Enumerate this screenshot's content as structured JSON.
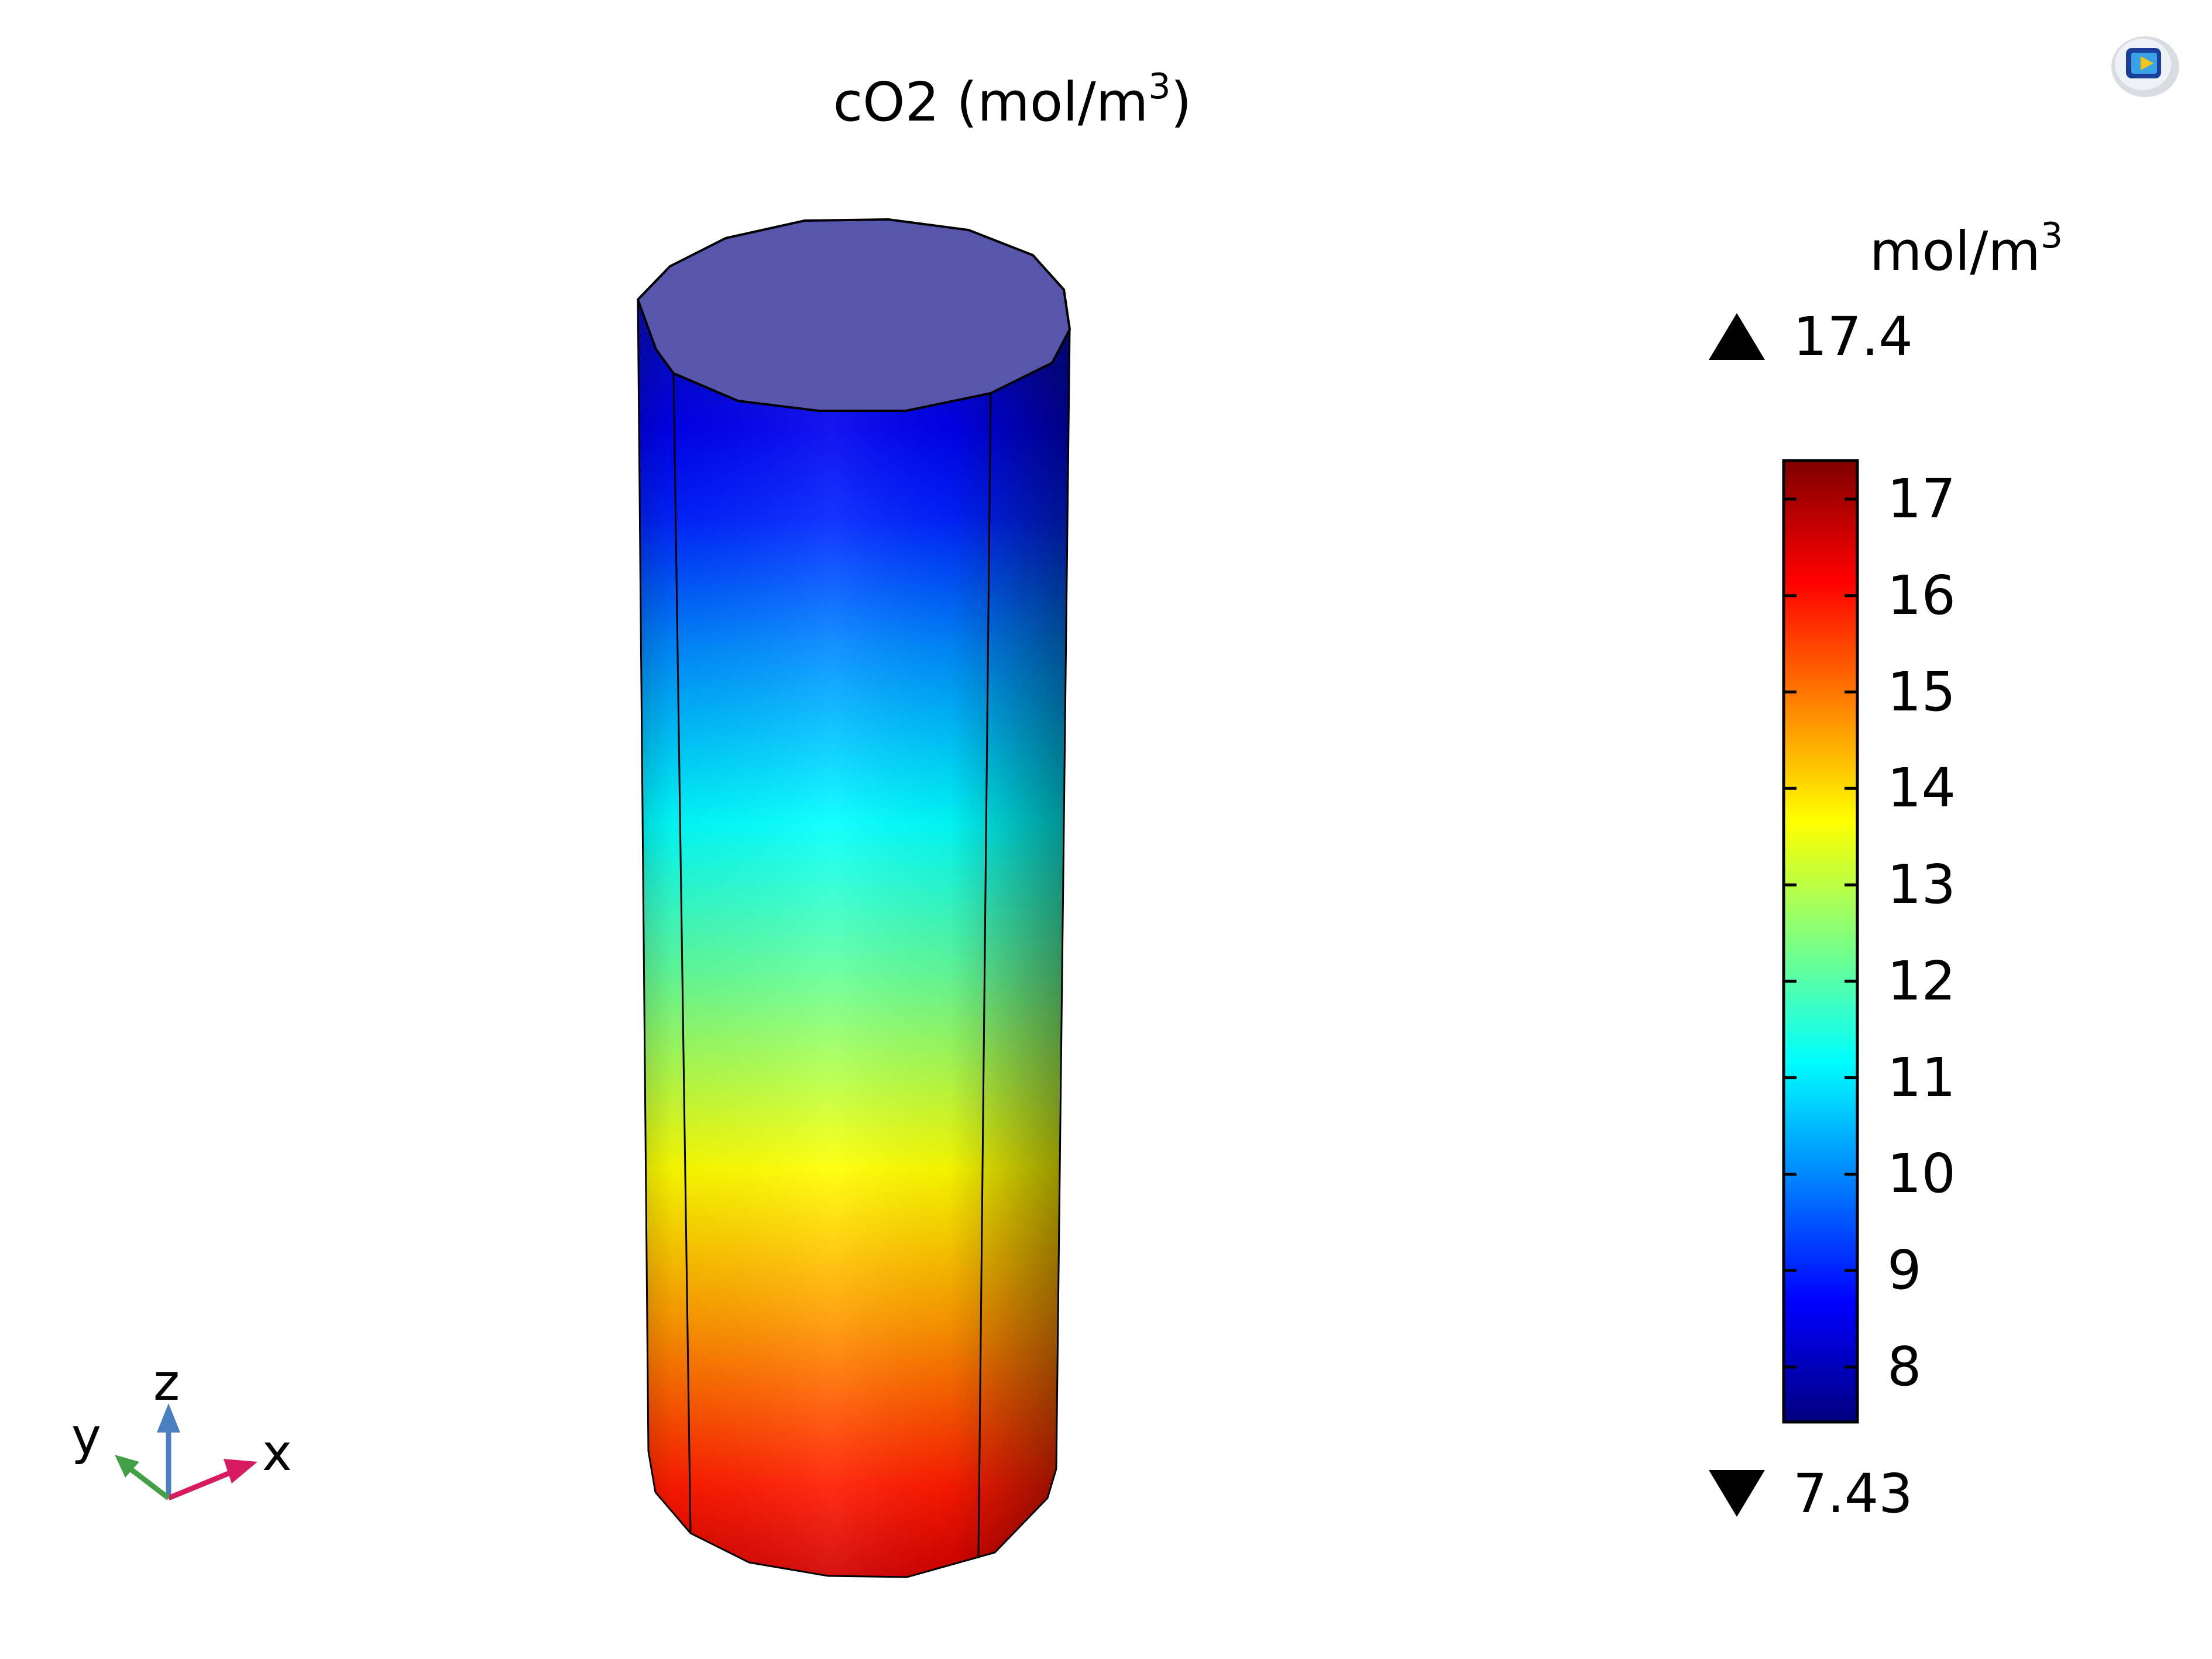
{
  "plot": {
    "title_text": "cO2 (mol/m",
    "title_superscript": "3",
    "title_close": ")"
  },
  "colorbar": {
    "unit_text": "mol/m",
    "unit_superscript": "3",
    "max_label": "17.4",
    "min_label": "7.43",
    "range_min": 7.43,
    "range_max": 17.4,
    "ticks": [
      "17",
      "16",
      "15",
      "14",
      "13",
      "12",
      "11",
      "10",
      "9",
      "8"
    ],
    "colormap": "rainbow",
    "colormap_stops": [
      "#00007f",
      "#0000ff",
      "#00ffff",
      "#7fff7f",
      "#ffff00",
      "#ff7f00",
      "#ff0000",
      "#7f0000"
    ]
  },
  "axes_triad": {
    "x_label": "x",
    "y_label": "y",
    "z_label": "z",
    "x_color": "#d81b60",
    "y_color": "#43a047",
    "z_color": "#4a7fc1"
  },
  "cylinder": {
    "top_cap_color": "#5656ad",
    "edge_color": "#000000"
  },
  "app_icon": {
    "icon_name": "comsol-logo-icon"
  }
}
